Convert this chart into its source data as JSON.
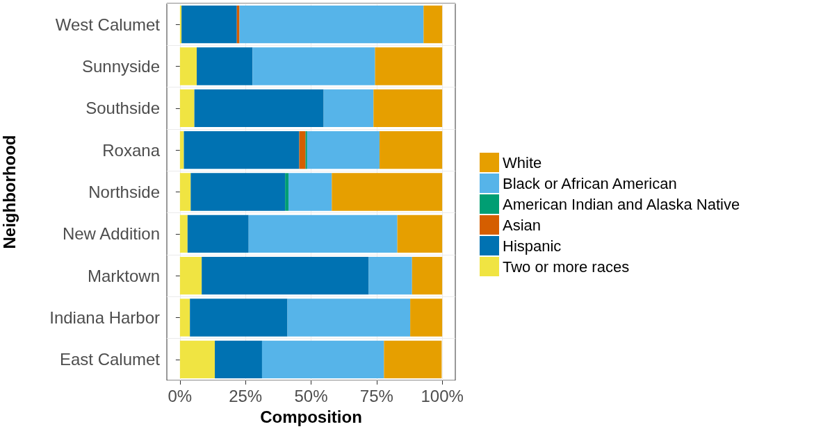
{
  "chart_data": {
    "type": "bar",
    "orientation": "horizontal",
    "stacked": true,
    "xlabel": "Composition",
    "ylabel": "Neighborhood",
    "categories": [
      "West Calumet",
      "Sunnyside",
      "Southside",
      "Roxana",
      "Northside",
      "New Addition",
      "Marktown",
      "Indiana Harbor",
      "East Calumet"
    ],
    "series": [
      {
        "name": "Two or more races",
        "color": "#f0e442",
        "values": [
          0.6,
          6.4,
          5.5,
          1.5,
          4.1,
          2.9,
          8.3,
          3.8,
          13.3
        ]
      },
      {
        "name": "Hispanic",
        "color": "#0072b2",
        "values": [
          21.1,
          21.3,
          49.3,
          44.0,
          36.0,
          23.3,
          63.7,
          37.2,
          18.0
        ]
      },
      {
        "name": "Asian",
        "color": "#d55e00",
        "values": [
          1.0,
          0,
          0,
          2.4,
          0,
          0,
          0,
          0,
          0
        ]
      },
      {
        "name": "American Indian and Alaska Native",
        "color": "#009e73",
        "values": [
          0,
          0,
          0,
          0.6,
          1.3,
          0,
          0,
          0,
          null
        ]
      },
      {
        "name": "Black or African American",
        "color": "#56b4e9",
        "values": [
          70.2,
          46.7,
          19.0,
          27.6,
          16.5,
          56.7,
          16.5,
          46.8,
          46.5
        ]
      },
      {
        "name": "White",
        "color": "#e69f00",
        "values": [
          7.1,
          25.6,
          26.2,
          23.9,
          42.1,
          17.1,
          11.5,
          12.2,
          22.0
        ]
      }
    ],
    "xlim": [
      -5,
      105
    ],
    "xticks": [
      {
        "value": 0,
        "label": "0%"
      },
      {
        "value": 25,
        "label": "25%"
      },
      {
        "value": 50,
        "label": "50%"
      },
      {
        "value": 75,
        "label": "75%"
      },
      {
        "value": 100,
        "label": "100%"
      }
    ],
    "grid": true,
    "legend": "right"
  }
}
